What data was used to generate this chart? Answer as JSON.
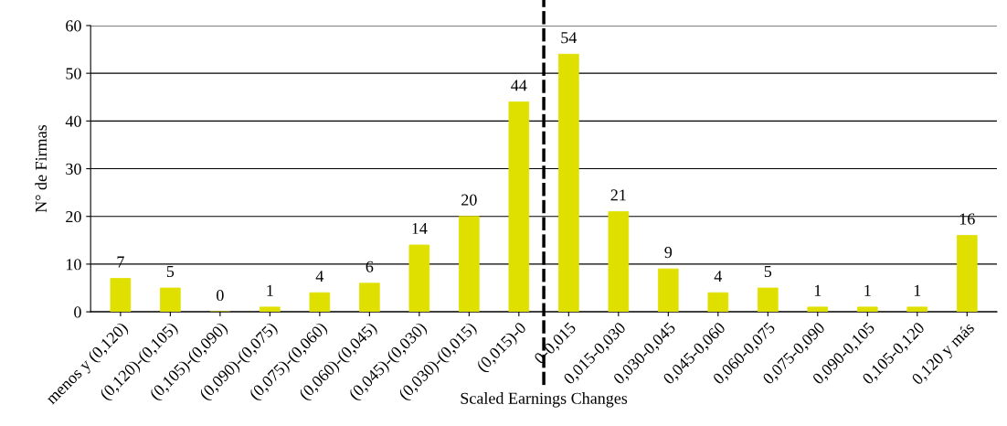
{
  "chart_data": {
    "type": "bar",
    "xlabel": "Scaled Earnings Changes",
    "ylabel": "N° de Firmas",
    "categories": [
      "menos y (0,120)",
      "(0,120)-(0,105)",
      "(0,105)-(0,090)",
      "(0,090)-(0,075)",
      "(0,075)-(0,060)",
      "(0,060)-(0,045)",
      "(0,045)-(0,030)",
      "(0,030)-(0,015)",
      "(0,015)-0",
      "0-0,015",
      "0,015-0,030",
      "0,030-0,045",
      "0,045-0,060",
      "0,060-0,075",
      "0,075-0,090",
      "0,090-0,105",
      "0,105-0,120",
      "0,120 y más"
    ],
    "values": [
      7,
      5,
      0,
      1,
      4,
      6,
      14,
      20,
      44,
      54,
      21,
      9,
      4,
      5,
      1,
      1,
      1,
      16
    ],
    "color": "#e0e000",
    "ylim": [
      0,
      60
    ],
    "yticks": [
      0,
      10,
      20,
      30,
      40,
      50,
      60
    ],
    "grid": "y",
    "data_labels": true
  }
}
